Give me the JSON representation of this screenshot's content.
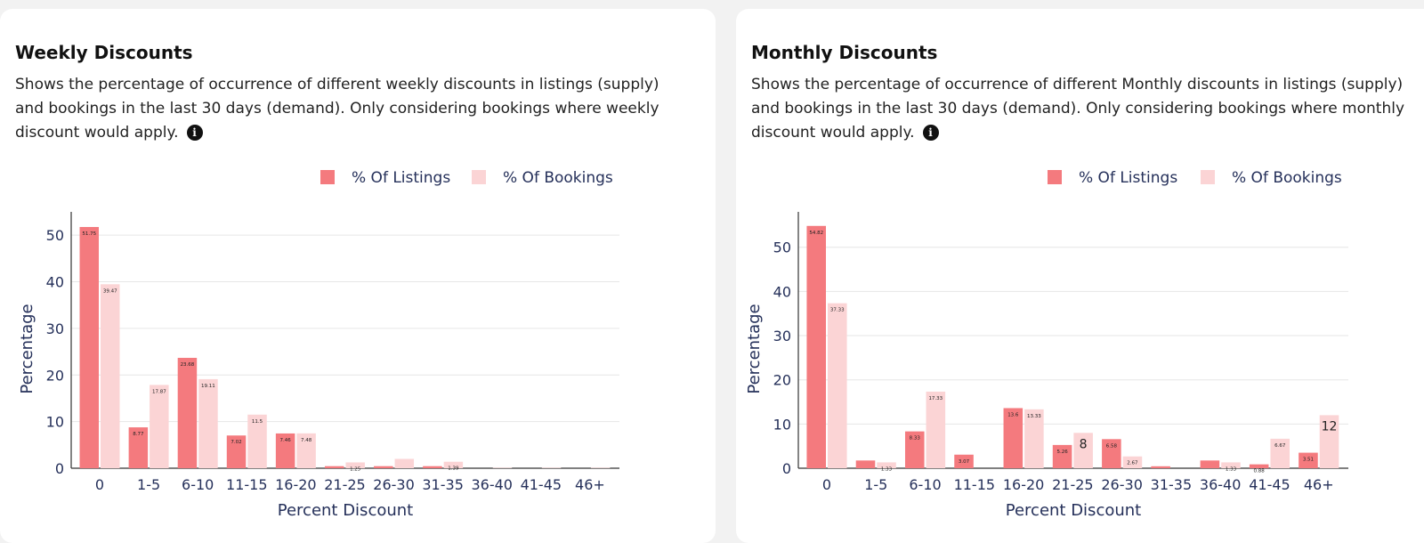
{
  "cards": [
    {
      "title": "Weekly Discounts",
      "description": "Shows the percentage of occurrence of different weekly discounts in listings (supply) and bookings in the last 30 days (demand). Only considering bookings where weekly discount would apply.",
      "info_icon": "info-icon"
    },
    {
      "title": "Monthly Discounts",
      "description": "Shows the percentage of occurrence of different Monthly discounts in listings (supply) and bookings in the last 30 days (demand). Only considering bookings where monthly discount would apply.",
      "info_icon": "info-icon"
    }
  ],
  "colors": {
    "listings": "#f47a7e",
    "bookings": "#fbd4d5",
    "grid": "#e6e6e6",
    "axis": "#333333"
  },
  "chart_data": [
    {
      "type": "bar",
      "title": "",
      "xlabel": "Percent Discount",
      "ylabel": "Percentage",
      "ylim": [
        0,
        55
      ],
      "yticks": [
        0,
        10,
        20,
        30,
        40,
        50
      ],
      "grid": true,
      "legend": "top-right",
      "categories": [
        "0",
        "1-5",
        "6-10",
        "11-15",
        "16-20",
        "21-25",
        "26-30",
        "31-35",
        "36-40",
        "41-45",
        "46+"
      ],
      "series": [
        {
          "name": "% Of Listings",
          "values": [
            51.75,
            8.77,
            23.68,
            7.02,
            7.46,
            0.44,
            0.44,
            0.44,
            0,
            0,
            0
          ],
          "labels": [
            "51.75",
            "8.77",
            "23.68",
            "7.02",
            "7.46",
            "",
            "",
            "",
            "",
            "",
            ""
          ]
        },
        {
          "name": "% Of Bookings",
          "values": [
            39.47,
            17.87,
            19.11,
            11.5,
            7.48,
            1.25,
            2.0,
            1.39,
            0.1,
            0.1,
            0.1
          ],
          "labels": [
            "39.47",
            "17.87",
            "19.11",
            "11.5",
            "7.48",
            "1.25",
            "",
            "1.39",
            "",
            "",
            ""
          ]
        }
      ]
    },
    {
      "type": "bar",
      "title": "",
      "xlabel": "Percent Discount",
      "ylabel": "Percentage",
      "ylim": [
        0,
        58
      ],
      "yticks": [
        0,
        10,
        20,
        30,
        40,
        50
      ],
      "grid": true,
      "legend": "top-right",
      "categories": [
        "0",
        "1-5",
        "6-10",
        "11-15",
        "16-20",
        "21-25",
        "26-30",
        "31-35",
        "36-40",
        "41-45",
        "46+"
      ],
      "series": [
        {
          "name": "% Of Listings",
          "values": [
            54.82,
            1.75,
            8.33,
            3.07,
            13.6,
            5.26,
            6.58,
            0.44,
            1.75,
            0.88,
            3.51
          ],
          "labels": [
            "54.82",
            "",
            "8.33",
            "3.07",
            "13.6",
            "5.26",
            "6.58",
            "",
            "",
            "0.88",
            "3.51"
          ]
        },
        {
          "name": "% Of Bookings",
          "values": [
            37.33,
            1.33,
            17.33,
            0,
            13.33,
            8,
            2.67,
            0,
            1.33,
            6.67,
            12
          ],
          "labels": [
            "37.33",
            "1.33",
            "17.33",
            "",
            "13.33",
            "8",
            "2.67",
            "",
            "1.33",
            "6.67",
            "12"
          ]
        }
      ]
    }
  ]
}
